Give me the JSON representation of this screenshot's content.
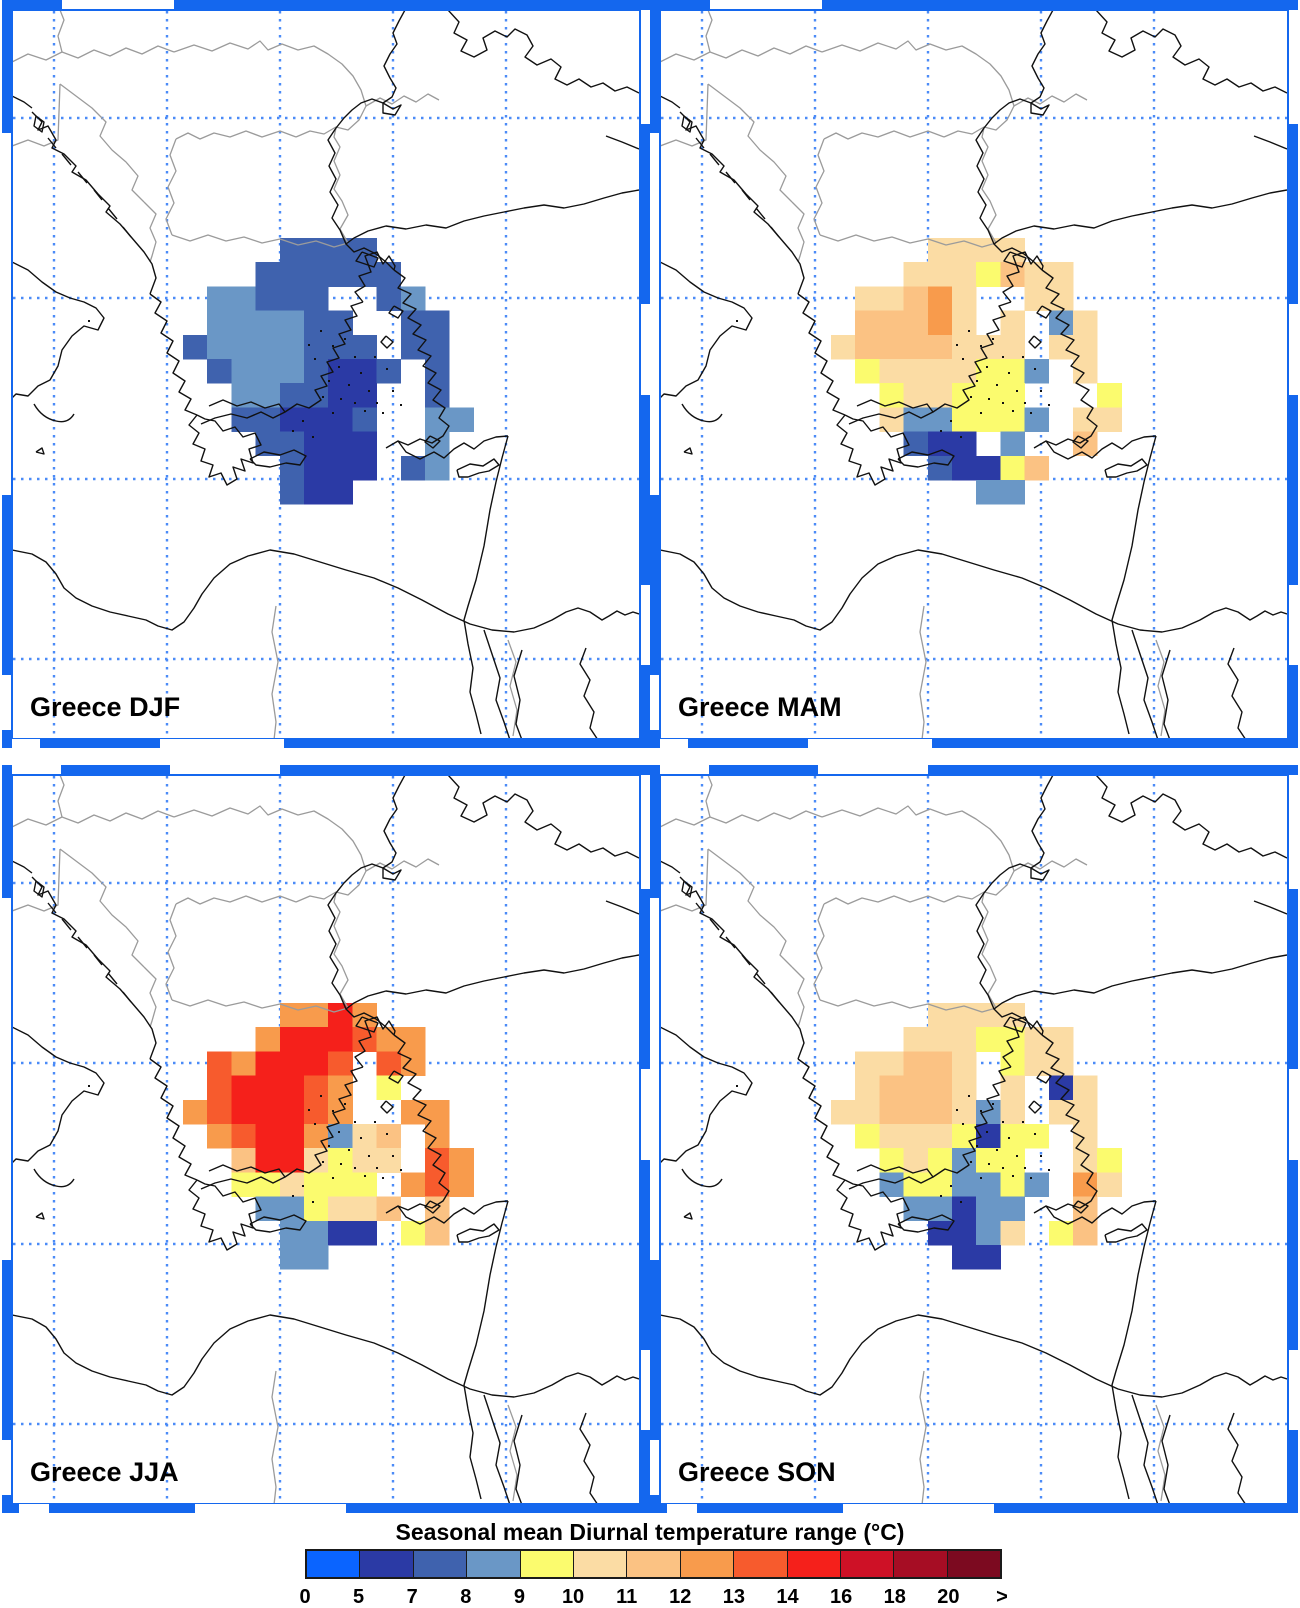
{
  "colorbar": {
    "title": "Seasonal mean Diurnal temperature range (°C)",
    "tick_labels": [
      "0",
      "5",
      "7",
      "8",
      "9",
      "10",
      "11",
      "12",
      "13",
      "14",
      "16",
      "18",
      "20",
      ">"
    ],
    "colors": [
      "#0a64ff",
      "#2b3aa5",
      "#3f62ae",
      "#6a97c6",
      "#fbfb6e",
      "#fbdca4",
      "#fbc283",
      "#f89b4c",
      "#f75b2d",
      "#f5201b",
      "#ce1126",
      "#a60d24",
      "#7c0a20"
    ]
  },
  "chart_data": {
    "type": "heatmap",
    "title": "Seasonal mean Diurnal temperature range (°C)",
    "unit": "°C",
    "legend_position": "bottom",
    "bin_edges_c": [
      "0",
      "5",
      "7",
      "8",
      "9",
      "10",
      "11",
      "12",
      "13",
      "14",
      "16",
      "18",
      "20",
      ">"
    ],
    "palette": [
      "#0a64ff",
      "#2b3aa5",
      "#3f62ae",
      "#6a97c6",
      "#fbfb6e",
      "#fbdca4",
      "#fbc283",
      "#f89b4c",
      "#f75b2d",
      "#f5201b",
      "#ce1126",
      "#a60d24",
      "#7c0a20"
    ],
    "grid_encoding": "each char = palette bin index (0-9, A=10, B=11, C=12); '.' = no data; rows north to south over Greece",
    "panels": [
      {
        "season": "DJF",
        "label": "Greece DJF",
        "grid": [
          "....2222....",
          "...222222...",
          ".33222..23..",
          ".333322..22.",
          "23333222.22.",
          ".23332112.2.",
          "..332211..2.",
          "..221112..33",
          "...22111..3.",
          "....2111.23.",
          "....211....."
        ]
      },
      {
        "season": "MAM",
        "label": "Greece MAM",
        "grid": [
          "....5555....",
          "...5554655..",
          ".55675..55..",
          ".66675.5.35.",
          "56666555.55.",
          ".45555443.5.",
          "..455444...4",
          "..5334443.55",
          "...211.3..6.",
          "....21146...",
          "......33...."
        ]
      },
      {
        "season": "JJA",
        "label": "Greece JJA",
        "grid": [
          "....7797....",
          "...7999877..",
          ".879998.87..",
          ".899987.4...",
          "7899987..77.",
          ".78997356.7.",
          "..6995455.87",
          "..445444.787",
          "...334556.6.",
          "....3311.46.",
          "....33......"
        ]
      },
      {
        "season": "SON",
        "label": "Greece SON",
        "grid": [
          "....5555....",
          "...5554455..",
          ".55665.455..",
          ".56665.5.15.",
          "55666535.55.",
          ".45554144.5.",
          "..454344..54",
          "..3443343.75",
          "...33133..6.",
          "....1135.46.",
          ".....11....."
        ]
      }
    ]
  }
}
